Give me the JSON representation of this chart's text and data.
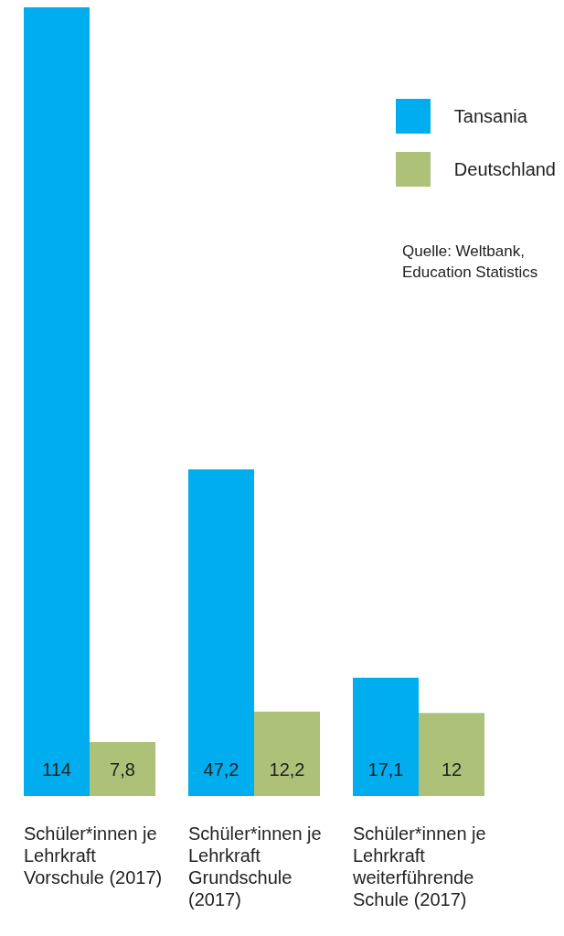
{
  "chart_data": {
    "type": "bar",
    "categories": [
      "Schüler*innen je Lehrkraft Vorschule (2017)",
      "Schüler*innen je Lehrkraft Grundschule (2017)",
      "Schüler*innen je Lehrkraft weiterführende Schule (2017)"
    ],
    "series": [
      {
        "name": "Tansania",
        "color": "#00adef",
        "values": [
          114,
          47.2,
          17.1
        ],
        "value_labels": [
          "114",
          "47,2",
          "17,1"
        ]
      },
      {
        "name": "Deutschland",
        "color": "#adc178",
        "values": [
          7.8,
          12.2,
          12
        ],
        "value_labels": [
          "7,8",
          "12,2",
          "12"
        ]
      }
    ],
    "ylim": [
      0,
      114
    ],
    "legend": "top right",
    "grid": false,
    "annotations": [
      "Quelle: Weltbank, Education Statistics"
    ]
  }
}
